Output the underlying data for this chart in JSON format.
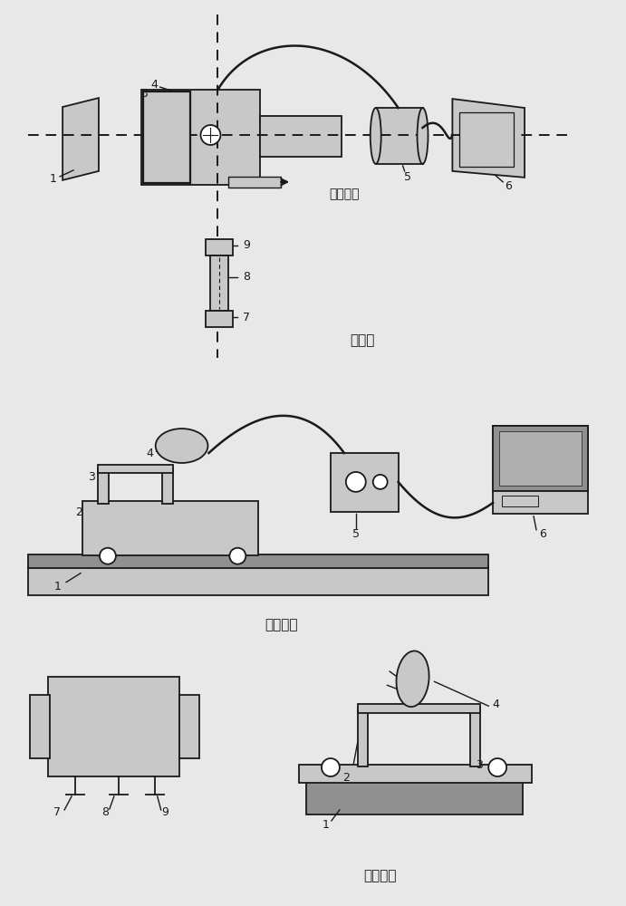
{
  "bg_color": "#e8e8e8",
  "fig_width": 6.91,
  "fig_height": 10.0,
  "section1_label": "俯视图",
  "section2_label": "横切面图",
  "section3_label": "纵切面图",
  "move_label": "移动方向",
  "line_color": "#1a1a1a",
  "fill_color": "#c8c8c8",
  "fill_dark": "#909090"
}
